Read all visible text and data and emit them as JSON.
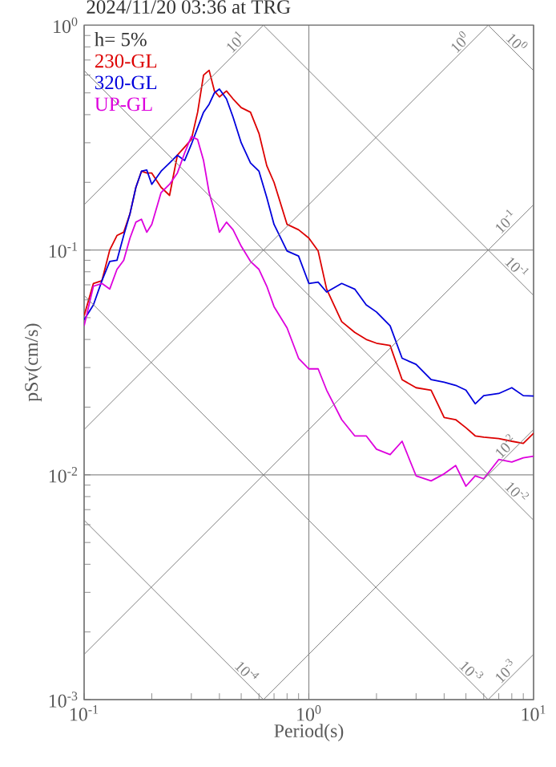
{
  "chart_data": {
    "type": "line",
    "title": "2024/11/20 03:36 at TRG",
    "xlabel": "Period(s)",
    "ylabel": "pSv(cm/s)",
    "legend_title": "h= 5%",
    "legend": "top left",
    "log": "xy",
    "grid": true,
    "xlim": [
      0.1,
      10
    ],
    "ylim": [
      0.001,
      1
    ],
    "xticks": [
      {
        "value": 0.1,
        "label": "10$^{-1}$"
      },
      {
        "value": 1,
        "label": "10$^{0}$"
      },
      {
        "value": 10,
        "label": "10$^{1}$"
      }
    ],
    "yticks": [
      {
        "value": 0.001,
        "label": "10$^{-3}$"
      },
      {
        "value": 0.01,
        "label": "10$^{-2}$"
      },
      {
        "value": 0.1,
        "label": "10$^{-1}$"
      },
      {
        "value": 1,
        "label": "10$^{0}$"
      }
    ],
    "x": [
      0.1,
      0.11,
      0.12,
      0.13,
      0.14,
      0.15,
      0.16,
      0.17,
      0.18,
      0.19,
      0.2,
      0.22,
      0.24,
      0.26,
      0.28,
      0.3,
      0.32,
      0.34,
      0.36,
      0.38,
      0.4,
      0.43,
      0.46,
      0.5,
      0.55,
      0.6,
      0.65,
      0.7,
      0.8,
      0.9,
      1,
      1.1,
      1.2,
      1.4,
      1.6,
      1.8,
      2,
      2.3,
      2.6,
      3,
      3.5,
      4,
      4.5,
      5,
      5.5,
      6,
      7,
      8,
      9,
      10
    ],
    "series": [
      {
        "name": "230-GL",
        "color": "#dd0000",
        "values": [
          0.051,
          0.071,
          0.073,
          0.1,
          0.116,
          0.12,
          0.145,
          0.19,
          0.224,
          0.22,
          0.22,
          0.19,
          0.175,
          0.264,
          0.287,
          0.31,
          0.41,
          0.6,
          0.63,
          0.51,
          0.48,
          0.51,
          0.47,
          0.43,
          0.41,
          0.33,
          0.237,
          0.2,
          0.13,
          0.123,
          0.113,
          0.099,
          0.067,
          0.048,
          0.043,
          0.04,
          0.0385,
          0.0376,
          0.0265,
          0.0244,
          0.0238,
          0.018,
          0.0176,
          0.0162,
          0.0149,
          0.0147,
          0.0145,
          0.0141,
          0.0138,
          0.0153
        ]
      },
      {
        "name": "320-GL",
        "color": "#0000dd",
        "values": [
          0.049,
          0.057,
          0.073,
          0.089,
          0.09,
          0.116,
          0.145,
          0.19,
          0.224,
          0.227,
          0.196,
          0.224,
          0.244,
          0.264,
          0.25,
          0.295,
          0.35,
          0.41,
          0.445,
          0.5,
          0.52,
          0.47,
          0.39,
          0.3,
          0.244,
          0.224,
          0.171,
          0.13,
          0.099,
          0.094,
          0.071,
          0.072,
          0.065,
          0.071,
          0.067,
          0.057,
          0.053,
          0.046,
          0.033,
          0.031,
          0.0265,
          0.0258,
          0.025,
          0.0238,
          0.0207,
          0.0225,
          0.023,
          0.0244,
          0.0225,
          0.0224
        ]
      },
      {
        "name": "UP-GL",
        "color": "#dd00dd",
        "values": [
          0.046,
          0.069,
          0.071,
          0.067,
          0.082,
          0.09,
          0.113,
          0.133,
          0.137,
          0.12,
          0.13,
          0.18,
          0.196,
          0.22,
          0.27,
          0.32,
          0.31,
          0.25,
          0.18,
          0.149,
          0.12,
          0.133,
          0.123,
          0.104,
          0.089,
          0.082,
          0.069,
          0.056,
          0.045,
          0.033,
          0.0296,
          0.0296,
          0.0238,
          0.0176,
          0.0149,
          0.0149,
          0.013,
          0.0123,
          0.0141,
          0.0099,
          0.0094,
          0.0101,
          0.011,
          0.0089,
          0.0099,
          0.0096,
          0.0117,
          0.0114,
          0.0119,
          0.0121
        ]
      },
      {
        "name": "10$^{1}$",
        "color": "#808080",
        "x": [
          0.1,
          0.628
        ],
        "values": [
          0.159,
          1
        ]
      },
      {
        "name": "10$^{0}$",
        "color": "#808080",
        "x": [
          0.1,
          6.28
        ],
        "values": [
          0.0159,
          1
        ]
      },
      {
        "name": "10$^{-1}$",
        "color": "#808080",
        "x": [
          0.1,
          10
        ],
        "values": [
          0.00159,
          0.159
        ]
      },
      {
        "name": "10$^{-2}$",
        "color": "#808080",
        "x": [
          0.628,
          10
        ],
        "values": [
          0.001,
          0.0159
        ]
      },
      {
        "name": "10$^{-3}$",
        "color": "#808080",
        "x": [
          6.28,
          10
        ],
        "values": [
          0.001,
          0.00159
        ]
      },
      {
        "name": "10$^{0}$",
        "color": "#808080",
        "x": [
          6.28,
          10
        ],
        "values": [
          1,
          0.628
        ]
      },
      {
        "name": "10$^{-1}$",
        "color": "#808080",
        "x": [
          0.628,
          10
        ],
        "values": [
          1,
          0.0628
        ]
      },
      {
        "name": "10$^{-2}$",
        "color": "#808080",
        "x": [
          0.1,
          10
        ],
        "values": [
          0.628,
          0.00628
        ]
      },
      {
        "name": "10$^{-3}$",
        "color": "#808080",
        "x": [
          0.1,
          6.28
        ],
        "values": [
          0.0628,
          0.001
        ]
      },
      {
        "name": "10$^{-4}$",
        "color": "#808080",
        "x": [
          0.1,
          0.628
        ],
        "values": [
          0.00628,
          0.001
        ]
      }
    ]
  }
}
